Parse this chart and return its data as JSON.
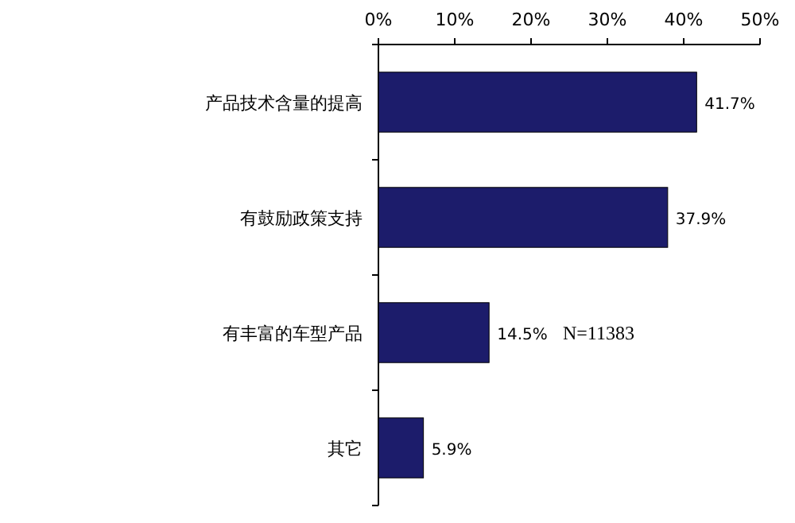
{
  "chart_data": {
    "type": "bar",
    "orientation": "horizontal",
    "categories": [
      "产品技术含量的提高",
      "有鼓励政策支持",
      "有丰富的车型产品",
      "其它"
    ],
    "values": [
      41.7,
      37.9,
      14.5,
      5.9
    ],
    "value_labels": [
      "41.7%",
      "37.9%",
      "14.5%",
      "5.9%"
    ],
    "color": "#1c1c6b",
    "xlim": [
      0,
      50
    ],
    "xticks": [
      {
        "value": 0,
        "label": "0%"
      },
      {
        "value": 10,
        "label": "10%"
      },
      {
        "value": 20,
        "label": "20%"
      },
      {
        "value": 30,
        "label": "30%"
      },
      {
        "value": 40,
        "label": "40%"
      },
      {
        "value": 50,
        "label": "50%"
      }
    ],
    "annotations": [
      "N=11383"
    ]
  }
}
